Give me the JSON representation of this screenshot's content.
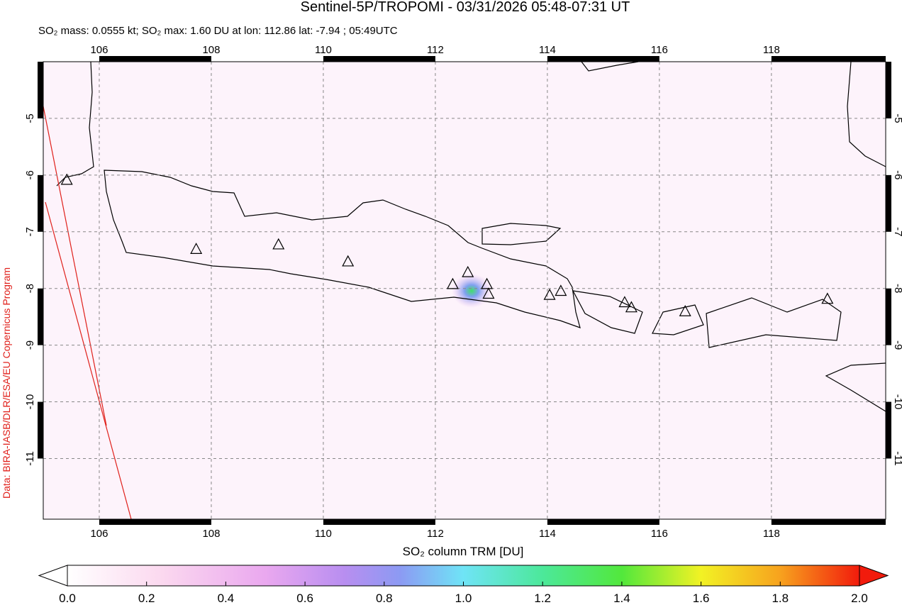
{
  "chart_data": {
    "type": "map",
    "title": "Sentinel-5P/TROPOMI - 03/31/2026 05:48-07:31 UT",
    "subtitle": "SO₂ mass: 0.0555 kt; SO₂ max: 1.60 DU at lon: 112.86 lat: -7.94 ; 05:49UTC",
    "credit": "Data: BIRA-IASB/DLR/ESA/EU Copernicus Program",
    "xlim": [
      105,
      120.04
    ],
    "ylim": [
      -12.07,
      -4
    ],
    "xticks": [
      106,
      108,
      110,
      112,
      114,
      116,
      118
    ],
    "yticks": [
      -5,
      -6,
      -7,
      -8,
      -9,
      -10,
      -11
    ],
    "grid": true,
    "volcanoes": {
      "lon": [
        105.42,
        107.73,
        109.2,
        110.44,
        112.31,
        112.58,
        112.92,
        112.95,
        114.04,
        114.24,
        115.38,
        115.5,
        116.46,
        119.0
      ],
      "lat": [
        -6.1,
        -7.32,
        -7.24,
        -7.54,
        -7.94,
        -7.73,
        -7.94,
        -8.11,
        -8.13,
        -8.06,
        -8.26,
        -8.35,
        -8.42,
        -8.2
      ]
    },
    "colorbar": {
      "label": "SO₂ column TRM [DU]",
      "lim": [
        0,
        2
      ],
      "ticks": [
        {
          "value": 0,
          "label": "0.0"
        },
        0.2,
        0.4,
        0.6,
        0.8,
        {
          "value": 1,
          "label": "1.0"
        },
        1.2,
        1.4,
        1.6,
        1.8,
        {
          "value": 2,
          "label": "2.0"
        }
      ]
    }
  }
}
